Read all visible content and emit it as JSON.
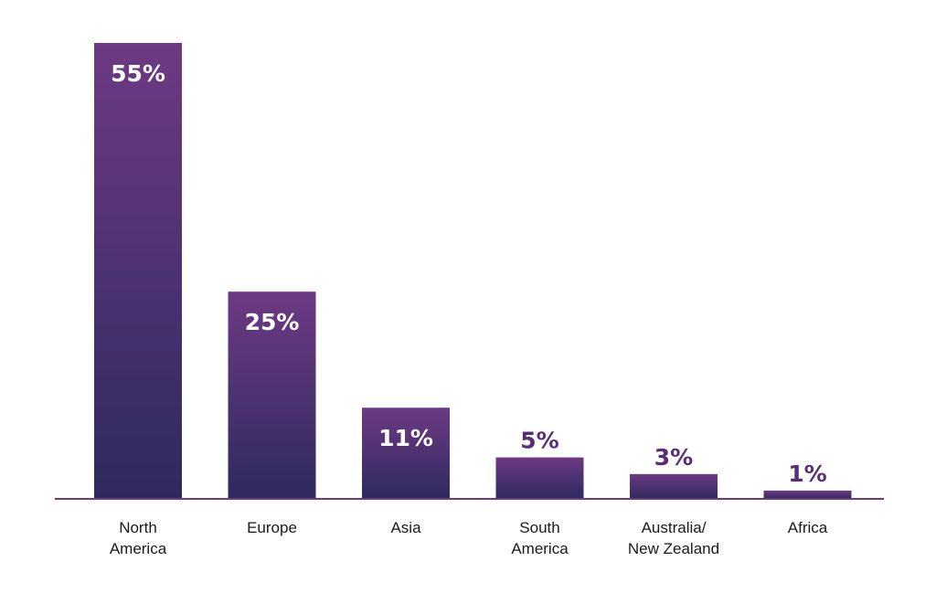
{
  "chart_data": {
    "type": "bar",
    "categories": [
      [
        "North",
        "America"
      ],
      [
        "Europe"
      ],
      [
        "Asia"
      ],
      [
        "South",
        "America"
      ],
      [
        "Australia/",
        "New Zealand"
      ],
      [
        "Africa"
      ]
    ],
    "values": [
      55,
      25,
      11,
      5,
      3,
      1
    ],
    "value_labels": [
      "55%",
      "25%",
      "11%",
      "5%",
      "3%",
      "1%"
    ],
    "ylim": [
      0,
      55
    ],
    "grid": false,
    "legend": "none",
    "colors": {
      "bar_top": "#6d3a83",
      "bar_bottom": "#2e2a5f",
      "baseline": "#6d3a83",
      "label_inside": "#ffffff",
      "label_outside": "#5b2d79"
    }
  }
}
